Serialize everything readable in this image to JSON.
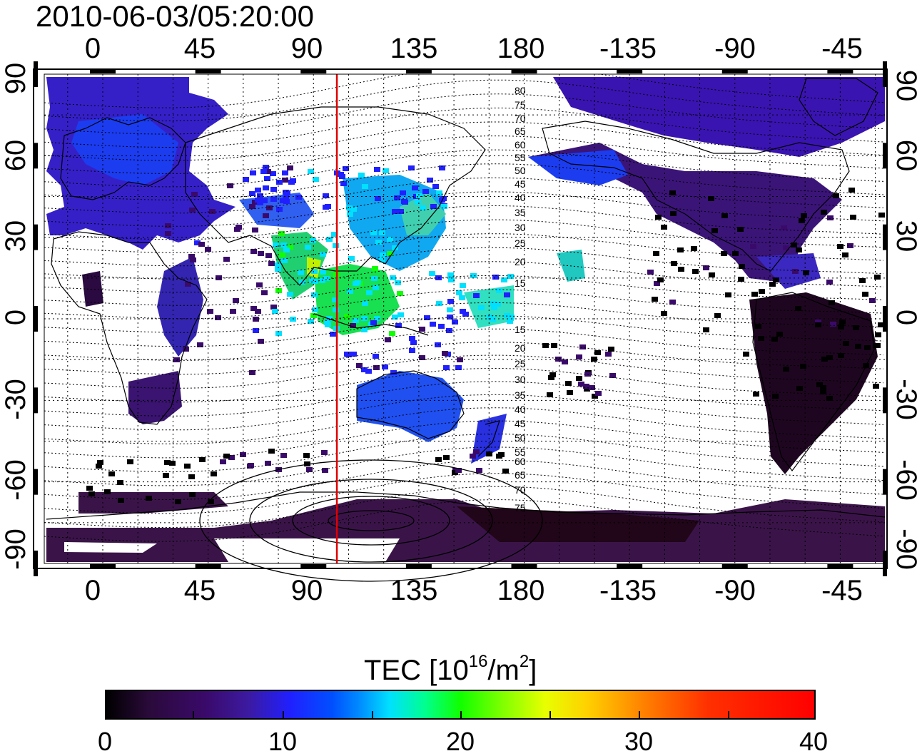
{
  "title": "2010-06-03/05:20:00",
  "lon_ticks": [
    "0",
    "45",
    "90",
    "135",
    "180",
    "-135",
    "-90",
    "-45"
  ],
  "lat_ticks": [
    "90",
    "60",
    "30",
    "0",
    "-30",
    "-60",
    "-90"
  ],
  "contour_labels": [
    "80",
    "75",
    "70",
    "65",
    "60",
    "55",
    "50",
    "45",
    "40",
    "35",
    "30",
    "25",
    "20",
    "15",
    "15",
    "20",
    "25",
    "30",
    "35",
    "40",
    "45",
    "50",
    "55",
    "60",
    "65",
    "70",
    "75"
  ],
  "colorbar": {
    "title_main": "TEC  [10",
    "title_exp1": "16",
    "title_mid": "/m",
    "title_exp2": "2",
    "title_end": "]",
    "tick_labels": [
      "0",
      "10",
      "20",
      "30",
      "40"
    ],
    "range": [
      0,
      40
    ],
    "colors": [
      "#000000",
      "#3a0a6a",
      "#2020ff",
      "#00e0ff",
      "#10ff00",
      "#e8ff00",
      "#ff8000",
      "#ff0000"
    ]
  },
  "meridian_marker": {
    "lon": 100,
    "color": "#e00000"
  },
  "map_extent": {
    "lon_min": -25,
    "lon_max": 335,
    "lat_min": -90,
    "lat_max": 90
  }
}
